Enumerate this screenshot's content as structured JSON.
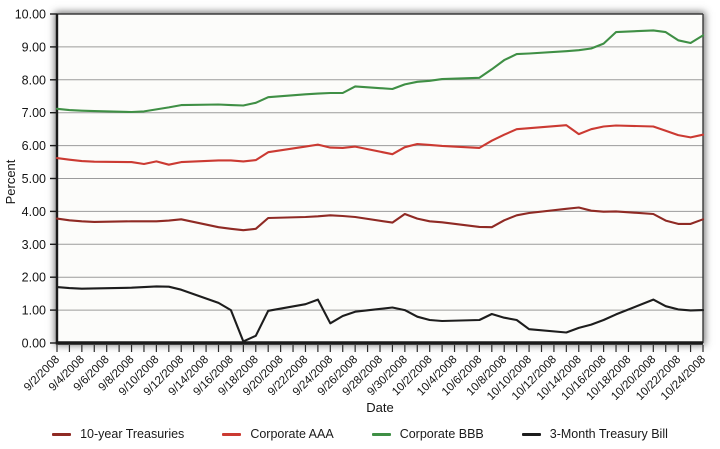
{
  "figure": {
    "y_axis_title": "Percent",
    "x_axis_title": "Date"
  },
  "colors": {
    "treasury_10yr": "#8f2a24",
    "corporate_aaa": "#cb3a32",
    "corporate_bbb": "#3f8f45",
    "tbill_3mo": "#1d1d1d",
    "gridline": "#9b9b9b",
    "axis": "#1a1a1a",
    "plot_background": "#fcfcfa"
  },
  "chart_data": {
    "type": "line",
    "title": "",
    "xlabel": "Date",
    "ylabel": "Percent",
    "ylim": [
      0,
      10
    ],
    "ytick_step": 1,
    "grid": "horizontal gridlines at every 1.00",
    "legend_position": "bottom",
    "y_tick_labels": [
      "0.00",
      "1.00",
      "2.00",
      "3.00",
      "4.00",
      "5.00",
      "6.00",
      "7.00",
      "8.00",
      "9.00",
      "10.00"
    ],
    "x_axis": {
      "start_date": "9/2/2008",
      "end_date": "10/24/2008",
      "total_days": 52,
      "tick_every_days": 1,
      "label_every_days": 2
    },
    "x_tick_labels": [
      "9/2/2008",
      "9/4/2008",
      "9/6/2008",
      "9/8/2008",
      "9/10/2008",
      "9/12/2008",
      "9/14/2008",
      "9/16/2008",
      "9/18/2008",
      "9/20/2008",
      "9/22/2008",
      "9/24/2008",
      "9/26/2008",
      "9/28/2008",
      "9/30/2008",
      "10/2/2008",
      "10/4/2008",
      "10/6/2008",
      "10/8/2008",
      "10/10/2008",
      "10/12/2008",
      "10/14/2008",
      "10/16/2008",
      "10/18/2008",
      "10/20/2008",
      "10/22/2008",
      "10/24/2008"
    ],
    "dates": [
      "9/2/2008",
      "9/3/2008",
      "9/4/2008",
      "9/5/2008",
      "9/8/2008",
      "9/9/2008",
      "9/10/2008",
      "9/11/2008",
      "9/12/2008",
      "9/15/2008",
      "9/16/2008",
      "9/17/2008",
      "9/18/2008",
      "9/19/2008",
      "9/22/2008",
      "9/23/2008",
      "9/24/2008",
      "9/25/2008",
      "9/26/2008",
      "9/29/2008",
      "9/30/2008",
      "10/1/2008",
      "10/2/2008",
      "10/3/2008",
      "10/6/2008",
      "10/7/2008",
      "10/8/2008",
      "10/9/2008",
      "10/10/2008",
      "10/13/2008",
      "10/14/2008",
      "10/15/2008",
      "10/16/2008",
      "10/17/2008",
      "10/20/2008",
      "10/21/2008",
      "10/22/2008",
      "10/23/2008",
      "10/24/2008"
    ],
    "series": [
      {
        "name": "10-year Treasuries",
        "color": "#8f2a24",
        "values": [
          3.78,
          3.73,
          3.7,
          3.68,
          3.7,
          3.7,
          3.7,
          3.72,
          3.76,
          3.52,
          3.47,
          3.43,
          3.47,
          3.8,
          3.83,
          3.85,
          3.88,
          3.86,
          3.83,
          3.66,
          3.92,
          3.78,
          3.7,
          3.67,
          3.53,
          3.52,
          3.73,
          3.88,
          3.95,
          4.08,
          4.12,
          4.02,
          3.99,
          4.0,
          3.92,
          3.72,
          3.62,
          3.62,
          3.76
        ]
      },
      {
        "name": "Corporate AAA",
        "color": "#cb3a32",
        "values": [
          5.62,
          5.57,
          5.53,
          5.51,
          5.5,
          5.44,
          5.52,
          5.42,
          5.5,
          5.55,
          5.55,
          5.52,
          5.56,
          5.8,
          5.97,
          6.03,
          5.94,
          5.93,
          5.97,
          5.74,
          5.95,
          6.05,
          6.02,
          5.99,
          5.93,
          6.15,
          6.33,
          6.5,
          6.53,
          6.62,
          6.35,
          6.5,
          6.58,
          6.61,
          6.58,
          6.45,
          6.32,
          6.25,
          6.33
        ]
      },
      {
        "name": "Corporate BBB",
        "color": "#3f8f45",
        "values": [
          7.12,
          7.08,
          7.06,
          7.05,
          7.02,
          7.04,
          7.1,
          7.16,
          7.23,
          7.25,
          7.23,
          7.22,
          7.3,
          7.47,
          7.56,
          7.58,
          7.6,
          7.6,
          7.8,
          7.72,
          7.86,
          7.94,
          7.97,
          8.02,
          8.06,
          8.32,
          8.6,
          8.78,
          8.8,
          8.87,
          8.9,
          8.95,
          9.1,
          9.45,
          9.5,
          9.45,
          9.2,
          9.12,
          9.35
        ]
      },
      {
        "name": "3-Month Treasury Bill",
        "color": "#1d1d1d",
        "values": [
          1.7,
          1.67,
          1.65,
          1.66,
          1.68,
          1.7,
          1.72,
          1.71,
          1.62,
          1.22,
          1.0,
          0.05,
          0.22,
          0.98,
          1.18,
          1.32,
          0.6,
          0.82,
          0.95,
          1.08,
          1.0,
          0.8,
          0.7,
          0.67,
          0.7,
          0.88,
          0.77,
          0.7,
          0.42,
          0.32,
          0.46,
          0.56,
          0.7,
          0.87,
          1.32,
          1.12,
          1.02,
          0.99,
          1.0
        ]
      }
    ]
  }
}
